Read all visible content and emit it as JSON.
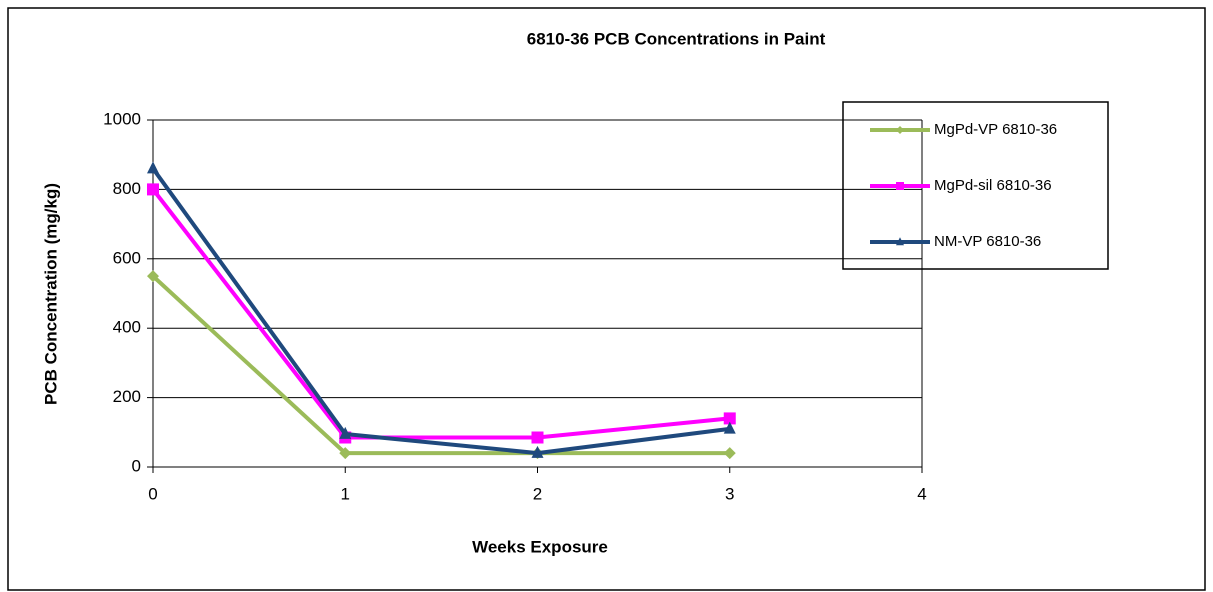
{
  "chart_data": {
    "type": "line",
    "title": "6810-36  PCB Concentrations  in Paint",
    "x_label": "Weeks Exposure",
    "y_label": "PCB Concentration  (mg/kg)",
    "x": [
      0,
      1,
      2,
      3
    ],
    "series": [
      {
        "name": "MgPd-VP 6810-36",
        "color": "#9bbb59",
        "marker": "diamond",
        "values": [
          550,
          40,
          40,
          40
        ]
      },
      {
        "name": "MgPd-sil 6810-36",
        "color": "#ff00ff",
        "marker": "square",
        "values": [
          800,
          85,
          85,
          140
        ]
      },
      {
        "name": "NM-VP 6810-36",
        "color": "#1f497d",
        "marker": "triangle",
        "values": [
          860,
          95,
          40,
          110
        ]
      }
    ],
    "xlim": [
      0,
      4
    ],
    "xticks": [
      0,
      1,
      2,
      3,
      4
    ],
    "ylim": [
      0,
      1000
    ],
    "yticks": [
      0,
      200,
      400,
      600,
      800,
      1000
    ],
    "grid": true,
    "legend": "upper right"
  }
}
